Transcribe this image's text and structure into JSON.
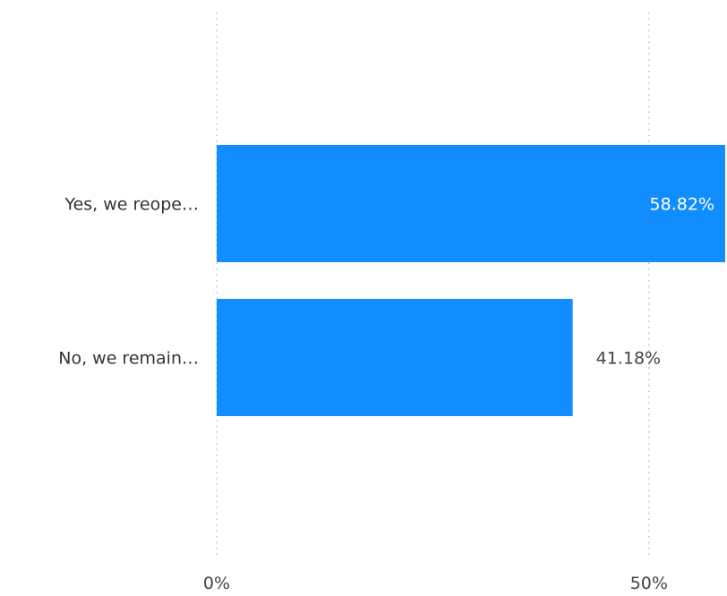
{
  "chart_data": {
    "type": "bar",
    "orientation": "horizontal",
    "categories": [
      "Yes, we reope…",
      "No, we remain…"
    ],
    "values": [
      58.82,
      41.18
    ],
    "data_labels": [
      "58.82%",
      "41.18%"
    ],
    "xlim": [
      0,
      58.82
    ],
    "xticks": [
      0,
      50
    ],
    "xtick_labels": [
      "0%",
      "50%"
    ],
    "grid": "vertical-dotted",
    "legend": "none",
    "bar_color": "#118DFF",
    "title": "",
    "xlabel": "",
    "ylabel": ""
  }
}
